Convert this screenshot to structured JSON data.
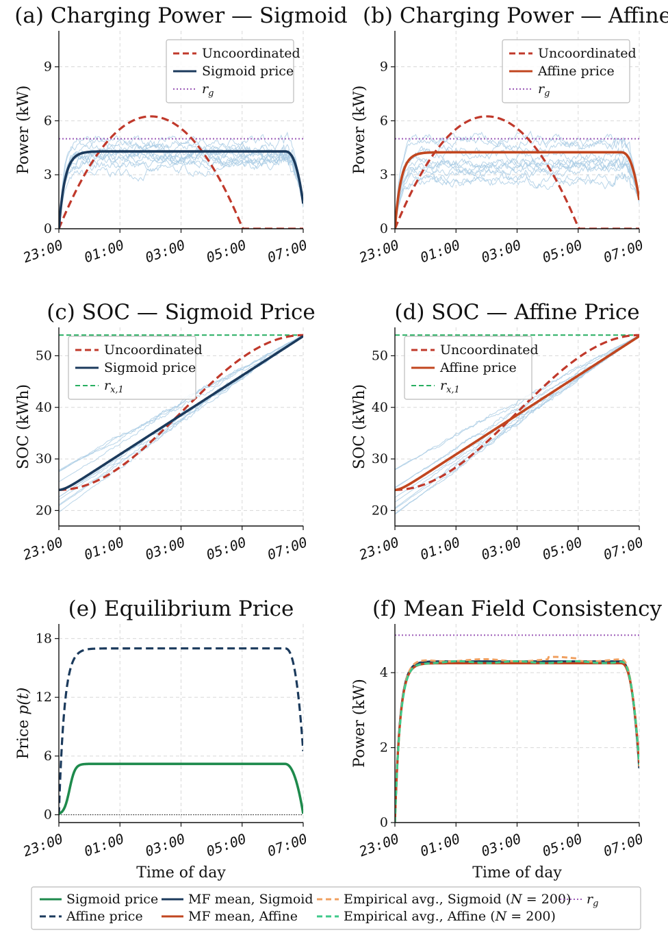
{
  "colors": {
    "uncoordinated": "#c0392b",
    "sigmoid": "#1b3a5c",
    "affine": "#c1461f",
    "sigmoid_price": "#1e8a4c",
    "affine_price": "#1b3a5c",
    "empirical_sigmoid": "#f0a060",
    "empirical_affine": "#3ec98a",
    "rg": "#9b59b6",
    "rx1": "#27ae60",
    "trajectories": "#a8cbe3"
  },
  "chart_data": [
    {
      "id": "a",
      "type": "line",
      "title": "(a) Charging Power — Sigmoid",
      "ylabel": "Power (kW)",
      "xlabel": "",
      "x_ticks": [
        "23:00",
        "01:00",
        "03:00",
        "05:00",
        "07:00"
      ],
      "xlim": [
        0,
        8
      ],
      "ylim": [
        0,
        11
      ],
      "y_ticks": [
        0,
        3,
        6,
        9
      ],
      "grid": true,
      "legend": {
        "position": "top-right",
        "entries": [
          "Uncoordinated",
          "Sigmoid price",
          "r_g"
        ]
      },
      "series": [
        {
          "name": "Uncoordinated",
          "style": "dashed",
          "peak": 6.2,
          "at_0": 0.0,
          "at_8": 0.35
        },
        {
          "name": "Sigmoid price",
          "style": "solid",
          "plateau": 4.3,
          "end": 1.4
        },
        {
          "name": "r_g",
          "style": "dotted",
          "value": 5.0
        }
      ],
      "trajectories": {
        "count": 12,
        "range": [
          2.9,
          5.7
        ]
      }
    },
    {
      "id": "b",
      "type": "line",
      "title": "(b) Charging Power — Affine",
      "ylabel": "Power (kW)",
      "xlabel": "",
      "x_ticks": [
        "23:00",
        "01:00",
        "03:00",
        "05:00",
        "07:00"
      ],
      "xlim": [
        0,
        8
      ],
      "ylim": [
        0,
        11
      ],
      "y_ticks": [
        0,
        3,
        6,
        9
      ],
      "grid": true,
      "legend": {
        "position": "top-right",
        "entries": [
          "Uncoordinated",
          "Affine price",
          "r_g"
        ]
      },
      "series": [
        {
          "name": "Uncoordinated",
          "style": "dashed",
          "peak": 6.2,
          "at_0": 0.0,
          "at_8": 0.35
        },
        {
          "name": "Affine price",
          "style": "solid",
          "plateau": 4.25,
          "end": 1.6
        },
        {
          "name": "r_g",
          "style": "dotted",
          "value": 5.0
        }
      ],
      "trajectories": {
        "count": 12,
        "range": [
          2.3,
          5.9
        ]
      }
    },
    {
      "id": "c",
      "type": "line",
      "title": "(c) SOC — Sigmoid Price",
      "ylabel": "SOC (kWh)",
      "xlabel": "",
      "x_ticks": [
        "23:00",
        "01:00",
        "03:00",
        "05:00",
        "07:00"
      ],
      "xlim": [
        0,
        8
      ],
      "ylim": [
        17,
        55.5
      ],
      "y_ticks": [
        20,
        30,
        40,
        50
      ],
      "grid": true,
      "legend": {
        "position": "top-left",
        "entries": [
          "Uncoordinated",
          "Sigmoid price",
          "r_x,1"
        ]
      },
      "series": [
        {
          "name": "Uncoordinated",
          "style": "dashed",
          "start": 24,
          "end": 54
        },
        {
          "name": "Sigmoid price",
          "style": "solid",
          "start": 24,
          "end": 54
        },
        {
          "name": "r_x,1",
          "style": "dashed",
          "value": 54
        }
      ],
      "trajectories": {
        "count": 10,
        "start_range": [
          19,
          28
        ],
        "end": 54
      }
    },
    {
      "id": "d",
      "type": "line",
      "title": "(d) SOC — Affine Price",
      "ylabel": "SOC (kWh)",
      "xlabel": "",
      "x_ticks": [
        "23:00",
        "01:00",
        "03:00",
        "05:00",
        "07:00"
      ],
      "xlim": [
        0,
        8
      ],
      "ylim": [
        17,
        55.5
      ],
      "y_ticks": [
        20,
        30,
        40,
        50
      ],
      "grid": true,
      "legend": {
        "position": "top-left",
        "entries": [
          "Uncoordinated",
          "Affine price",
          "r_x,1"
        ]
      },
      "series": [
        {
          "name": "Uncoordinated",
          "style": "dashed",
          "start": 24,
          "end": 54
        },
        {
          "name": "Affine price",
          "style": "solid",
          "start": 24,
          "end": 54
        },
        {
          "name": "r_x,1",
          "style": "dashed",
          "value": 54
        }
      ],
      "trajectories": {
        "count": 10,
        "start_range": [
          19,
          28
        ],
        "end": 54
      }
    },
    {
      "id": "e",
      "type": "line",
      "title": "(e) Equilibrium Price",
      "ylabel": "Price p(t)",
      "xlabel": "Time of day",
      "x_ticks": [
        "23:00",
        "01:00",
        "03:00",
        "05:00",
        "07:00"
      ],
      "xlim": [
        0,
        8
      ],
      "ylim": [
        -0.8,
        19.5
      ],
      "y_ticks": [
        0,
        6,
        12,
        18
      ],
      "grid": true,
      "series": [
        {
          "name": "Sigmoid price",
          "style": "solid",
          "plateau": 5.2,
          "end": 0.1
        },
        {
          "name": "Affine price",
          "style": "dashed",
          "plateau": 17.0,
          "end": 6.5
        },
        {
          "name": "zero",
          "style": "dotted",
          "value": 0
        }
      ]
    },
    {
      "id": "f",
      "type": "line",
      "title": "(f) Mean Field Consistency",
      "ylabel": "Power (kW)",
      "xlabel": "Time of day",
      "x_ticks": [
        "23:00",
        "01:00",
        "03:00",
        "05:00",
        "07:00"
      ],
      "xlim": [
        0,
        8
      ],
      "ylim": [
        0,
        5.3
      ],
      "y_ticks": [
        0,
        2,
        4
      ],
      "grid": true,
      "series": [
        {
          "name": "MF mean, Sigmoid",
          "style": "solid",
          "plateau": 4.3,
          "end": 1.45
        },
        {
          "name": "MF mean, Affine",
          "style": "solid",
          "plateau": 4.25,
          "end": 1.6
        },
        {
          "name": "Empirical avg., Sigmoid (N=200)",
          "style": "dashed",
          "plateau": 4.33,
          "end": 1.5
        },
        {
          "name": "Empirical avg., Affine (N=200)",
          "style": "dashed",
          "plateau": 4.28,
          "end": 1.55
        },
        {
          "name": "r_g",
          "style": "dotted",
          "value": 5.0
        }
      ]
    }
  ],
  "shared_legend": {
    "position": "bottom",
    "entries": [
      "Sigmoid price",
      "Affine price",
      "MF mean, Sigmoid",
      "MF mean, Affine",
      "Empirical avg., Sigmoid (N = 200)",
      "Empirical avg., Affine (N = 200)",
      "r_g"
    ]
  }
}
